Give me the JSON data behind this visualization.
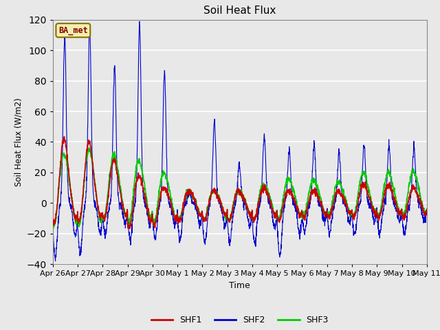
{
  "title": "Soil Heat Flux",
  "ylabel": "Soil Heat Flux (W/m2)",
  "xlabel": "Time",
  "ylim": [
    -40,
    120
  ],
  "background_color": "#e8e8e8",
  "plot_bg_color": "#e8e8e8",
  "grid_color": "white",
  "shf1_color": "#cc0000",
  "shf2_color": "#0000cc",
  "shf3_color": "#00cc00",
  "legend_label1": "SHF1",
  "legend_label2": "SHF2",
  "legend_label3": "SHF3",
  "station_label": "BA_met",
  "x_tick_labels": [
    "Apr 26",
    "Apr 27",
    "Apr 28",
    "Apr 29",
    "Apr 30",
    "May 1",
    "May 2",
    "May 3",
    "May 4",
    "May 5",
    "May 6",
    "May 7",
    "May 8",
    "May 9",
    "May 10",
    "May 11"
  ],
  "n_days": 15,
  "points_per_day": 144,
  "shf2_day_peaks": [
    109,
    117,
    90,
    117,
    86,
    7,
    53,
    26,
    44,
    35,
    39,
    34,
    38,
    38,
    37
  ],
  "shf2_day_neg": [
    -36,
    -33,
    -21,
    -24,
    -24,
    -24,
    -26,
    -26,
    -26,
    -35,
    -20,
    -20,
    -20,
    -20,
    -20
  ],
  "shf1_day_peaks": [
    42,
    40,
    28,
    18,
    10,
    8,
    8,
    8,
    10,
    8,
    8,
    8,
    12,
    12,
    10
  ],
  "shf1_day_neg": [
    -15,
    -14,
    -12,
    -17,
    -15,
    -12,
    -12,
    -12,
    -12,
    -12,
    -10,
    -10,
    -10,
    -10,
    -10
  ],
  "shf3_day_peaks": [
    32,
    35,
    32,
    28,
    20,
    8,
    8,
    8,
    12,
    16,
    15,
    14,
    20,
    20,
    21
  ],
  "shf3_day_neg": [
    -18,
    -18,
    -12,
    -15,
    -15,
    -12,
    -12,
    -12,
    -12,
    -12,
    -10,
    -10,
    -10,
    -10,
    -10
  ]
}
